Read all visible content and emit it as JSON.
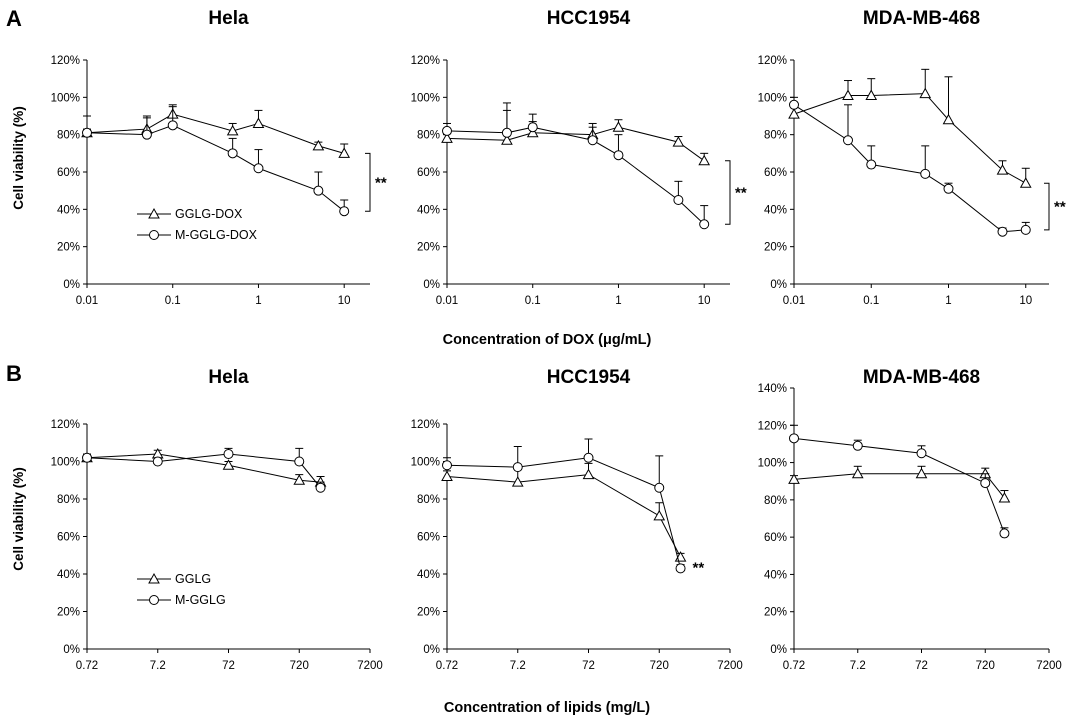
{
  "panel_letters": [
    "A",
    "B"
  ],
  "row_a": {
    "xlabel": "Concentration of DOX (μg/mL)",
    "ylabel": "Cell viability (%)"
  },
  "row_b": {
    "xlabel": "Concentration of lipids (mg/L)",
    "ylabel": "Cell viability (%)"
  },
  "chart_data": [
    {
      "type": "line",
      "title": "Hela",
      "row": "A",
      "xscale": "log",
      "x_ticks": [
        0.01,
        0.1,
        1,
        10
      ],
      "x_tick_labels": [
        "0.01",
        "0.1",
        "1",
        "10"
      ],
      "xlim": [
        0.01,
        20
      ],
      "ylim": [
        0,
        120
      ],
      "y_ticks": [
        0,
        20,
        40,
        60,
        80,
        100,
        120
      ],
      "y_tick_labels": [
        "0%",
        "20%",
        "40%",
        "60%",
        "80%",
        "100%",
        "120%"
      ],
      "legend": {
        "position": "bottom-left"
      },
      "significance": {
        "label": "**",
        "between": [
          70,
          39
        ]
      },
      "series": [
        {
          "name": "GGLG-DOX",
          "marker": "triangle",
          "x": [
            0.01,
            0.05,
            0.1,
            0.5,
            1,
            5,
            10
          ],
          "values": [
            81,
            83,
            91,
            82,
            86,
            74,
            70
          ],
          "errors": [
            2,
            6,
            5,
            4,
            7,
            2,
            5
          ]
        },
        {
          "name": "M-GGLG-DOX",
          "marker": "circle",
          "x": [
            0.01,
            0.05,
            0.1,
            0.5,
            1,
            5,
            10
          ],
          "values": [
            81,
            80,
            85,
            70,
            62,
            50,
            39
          ],
          "errors": [
            9,
            10,
            10,
            8,
            10,
            10,
            6
          ]
        }
      ]
    },
    {
      "type": "line",
      "title": "HCC1954",
      "row": "A",
      "xscale": "log",
      "x_ticks": [
        0.01,
        0.1,
        1,
        10
      ],
      "x_tick_labels": [
        "0.01",
        "0.1",
        "1",
        "10"
      ],
      "xlim": [
        0.01,
        20
      ],
      "ylim": [
        0,
        120
      ],
      "y_ticks": [
        0,
        20,
        40,
        60,
        80,
        100,
        120
      ],
      "y_tick_labels": [
        "0%",
        "20%",
        "40%",
        "60%",
        "80%",
        "100%",
        "120%"
      ],
      "significance": {
        "label": "**",
        "between": [
          66,
          32
        ]
      },
      "series": [
        {
          "name": "GGLG-DOX",
          "marker": "triangle",
          "x": [
            0.01,
            0.05,
            0.1,
            0.5,
            1,
            5,
            10
          ],
          "values": [
            78,
            77,
            81,
            80,
            84,
            76,
            66
          ],
          "errors": [
            5,
            20,
            10,
            6,
            4,
            3,
            4
          ]
        },
        {
          "name": "M-GGLG-DOX",
          "marker": "circle",
          "x": [
            0.01,
            0.05,
            0.1,
            0.5,
            1,
            5,
            10
          ],
          "values": [
            82,
            81,
            84,
            77,
            69,
            45,
            32
          ],
          "errors": [
            4,
            12,
            3,
            7,
            11,
            10,
            10
          ]
        }
      ]
    },
    {
      "type": "line",
      "title": "MDA-MB-468",
      "row": "A",
      "xscale": "log",
      "x_ticks": [
        0.01,
        0.1,
        1,
        10
      ],
      "x_tick_labels": [
        "0.01",
        "0.1",
        "1",
        "10"
      ],
      "xlim": [
        0.01,
        20
      ],
      "ylim": [
        0,
        120
      ],
      "y_ticks": [
        0,
        20,
        40,
        60,
        80,
        100,
        120
      ],
      "y_tick_labels": [
        "0%",
        "20%",
        "40%",
        "60%",
        "80%",
        "100%",
        "120%"
      ],
      "significance": {
        "label": "**",
        "between": [
          54,
          29
        ]
      },
      "series": [
        {
          "name": "GGLG-DOX",
          "marker": "triangle",
          "x": [
            0.01,
            0.05,
            0.1,
            0.5,
            1,
            5,
            10
          ],
          "values": [
            91,
            101,
            101,
            102,
            88,
            61,
            54
          ],
          "errors": [
            6,
            8,
            9,
            13,
            23,
            5,
            8
          ]
        },
        {
          "name": "M-GGLG-DOX",
          "marker": "circle",
          "x": [
            0.01,
            0.05,
            0.1,
            0.5,
            1,
            5,
            10
          ],
          "values": [
            96,
            77,
            64,
            59,
            51,
            28,
            29
          ],
          "errors": [
            4,
            19,
            10,
            15,
            3,
            2,
            4
          ]
        }
      ]
    },
    {
      "type": "line",
      "title": "Hela",
      "row": "B",
      "xscale": "log",
      "x_ticks": [
        0.72,
        7.2,
        72,
        720,
        7200
      ],
      "x_tick_labels": [
        "0.72",
        "7.2",
        "72",
        "720",
        "7200"
      ],
      "xlim": [
        0.72,
        7200
      ],
      "ylim": [
        0,
        120
      ],
      "y_ticks": [
        0,
        20,
        40,
        60,
        80,
        100,
        120
      ],
      "y_tick_labels": [
        "0%",
        "20%",
        "40%",
        "60%",
        "80%",
        "100%",
        "120%"
      ],
      "legend": {
        "position": "bottom-left"
      },
      "series": [
        {
          "name": "GGLG",
          "marker": "triangle",
          "x": [
            0.72,
            7.2,
            72,
            720,
            1440
          ],
          "values": [
            102,
            104,
            98,
            90,
            89
          ],
          "errors": [
            2,
            2,
            2,
            3,
            3
          ]
        },
        {
          "name": "M-GGLG",
          "marker": "circle",
          "x": [
            0.72,
            7.2,
            72,
            720,
            1440
          ],
          "values": [
            102,
            100,
            104,
            100,
            86
          ],
          "errors": [
            2,
            2,
            3,
            7,
            3
          ]
        }
      ]
    },
    {
      "type": "line",
      "title": "HCC1954",
      "row": "B",
      "xscale": "log",
      "x_ticks": [
        0.72,
        7.2,
        72,
        720,
        7200
      ],
      "x_tick_labels": [
        "0.72",
        "7.2",
        "72",
        "720",
        "7200"
      ],
      "xlim": [
        0.72,
        7200
      ],
      "ylim": [
        0,
        120
      ],
      "y_ticks": [
        0,
        20,
        40,
        60,
        80,
        100,
        120
      ],
      "y_tick_labels": [
        "0%",
        "20%",
        "40%",
        "60%",
        "80%",
        "100%",
        "120%"
      ],
      "significance": {
        "label": "**",
        "anchor_value": 43
      },
      "series": [
        {
          "name": "GGLG",
          "marker": "triangle",
          "x": [
            0.72,
            7.2,
            72,
            720,
            1440
          ],
          "values": [
            92,
            89,
            93,
            71,
            49
          ],
          "errors": [
            3,
            7,
            6,
            7,
            2
          ]
        },
        {
          "name": "M-GGLG",
          "marker": "circle",
          "x": [
            0.72,
            7.2,
            72,
            720,
            1440
          ],
          "values": [
            98,
            97,
            102,
            86,
            43
          ],
          "errors": [
            4,
            11,
            10,
            17,
            2
          ]
        }
      ]
    },
    {
      "type": "line",
      "title": "MDA-MB-468",
      "row": "B",
      "xscale": "log",
      "x_ticks": [
        0.72,
        7.2,
        72,
        720,
        7200
      ],
      "x_tick_labels": [
        "0.72",
        "7.2",
        "72",
        "720",
        "7200"
      ],
      "xlim": [
        0.72,
        7200
      ],
      "ylim": [
        0,
        140
      ],
      "y_ticks": [
        0,
        20,
        40,
        60,
        80,
        100,
        120,
        140
      ],
      "y_tick_labels": [
        "0%",
        "20%",
        "40%",
        "60%",
        "80%",
        "100%",
        "120%",
        "140%"
      ],
      "series": [
        {
          "name": "GGLG",
          "marker": "triangle",
          "x": [
            0.72,
            7.2,
            72,
            720,
            1440
          ],
          "values": [
            91,
            94,
            94,
            94,
            81
          ],
          "errors": [
            2,
            4,
            4,
            3,
            4
          ]
        },
        {
          "name": "M-GGLG",
          "marker": "circle",
          "x": [
            0.72,
            7.2,
            72,
            720,
            1440
          ],
          "values": [
            113,
            109,
            105,
            89,
            62
          ],
          "errors": [
            7,
            3,
            4,
            5,
            3
          ]
        }
      ]
    }
  ]
}
